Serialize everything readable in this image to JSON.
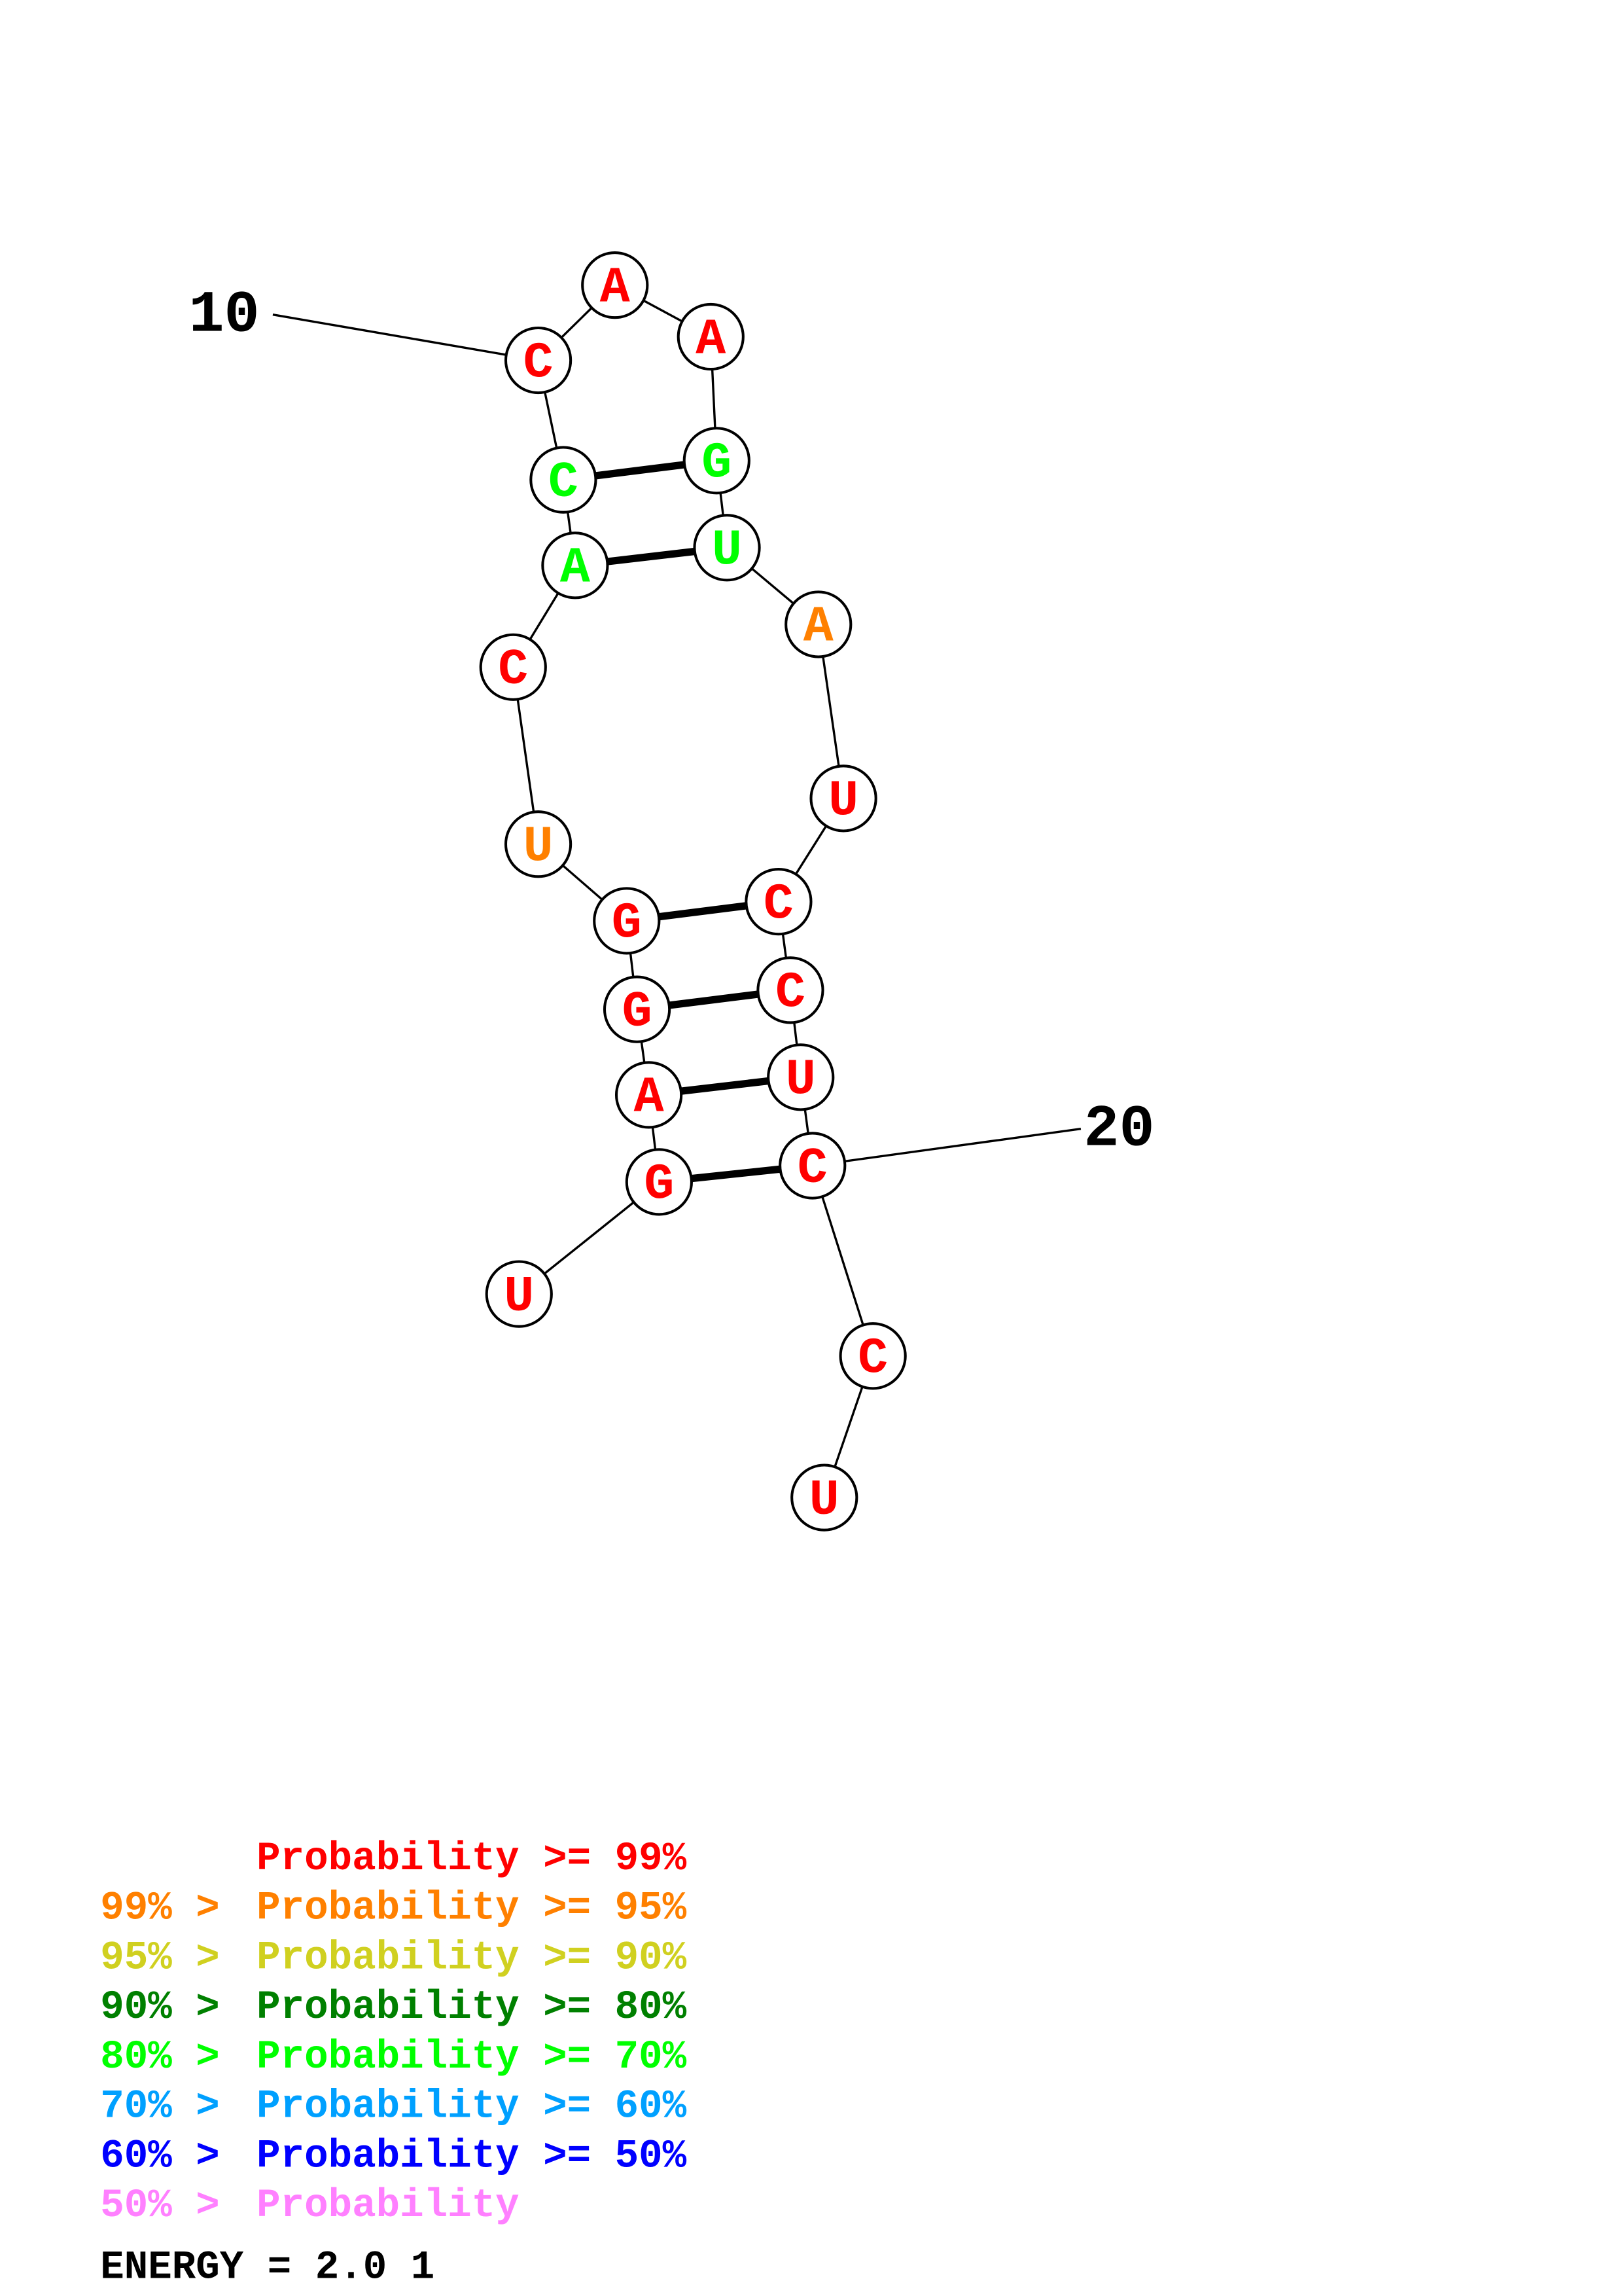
{
  "sequence": [
    {
      "base": "U",
      "color": "#ff0000"
    },
    {
      "base": "G",
      "color": "#ff0000"
    },
    {
      "base": "A",
      "color": "#ff0000"
    },
    {
      "base": "G",
      "color": "#ff0000"
    },
    {
      "base": "G",
      "color": "#ff0000"
    },
    {
      "base": "U",
      "color": "#ff8000"
    },
    {
      "base": "C",
      "color": "#ff0000"
    },
    {
      "base": "A",
      "color": "#00ff00"
    },
    {
      "base": "C",
      "color": "#00ff00"
    },
    {
      "base": "C",
      "color": "#ff0000"
    },
    {
      "base": "A",
      "color": "#ff0000"
    },
    {
      "base": "A",
      "color": "#ff0000"
    },
    {
      "base": "G",
      "color": "#00ff00"
    },
    {
      "base": "U",
      "color": "#00ff00"
    },
    {
      "base": "A",
      "color": "#ff8000"
    },
    {
      "base": "U",
      "color": "#ff0000"
    },
    {
      "base": "C",
      "color": "#ff0000"
    },
    {
      "base": "C",
      "color": "#ff0000"
    },
    {
      "base": "U",
      "color": "#ff0000"
    },
    {
      "base": "C",
      "color": "#ff0000"
    },
    {
      "base": "C",
      "color": "#ff0000"
    },
    {
      "base": "U",
      "color": "#ff0000"
    }
  ],
  "pairs": [
    [
      2,
      20
    ],
    [
      3,
      19
    ],
    [
      4,
      18
    ],
    [
      5,
      17
    ],
    [
      8,
      14
    ],
    [
      9,
      13
    ]
  ],
  "position_labels": [
    {
      "index": 10,
      "text": "10"
    },
    {
      "index": 20,
      "text": "20"
    }
  ],
  "legend": [
    {
      "prefix": "",
      "text": "Probability >= 99%",
      "color": "#ff0000"
    },
    {
      "prefix": "99% > ",
      "text": "Probability >= 95%",
      "color": "#ff8000"
    },
    {
      "prefix": "95% > ",
      "text": "Probability >= 90%",
      "color": "#d0d020"
    },
    {
      "prefix": "90% > ",
      "text": "Probability >= 80%",
      "color": "#008000"
    },
    {
      "prefix": "80% > ",
      "text": "Probability >= 70%",
      "color": "#00ff00"
    },
    {
      "prefix": "70% > ",
      "text": "Probability >= 60%",
      "color": "#00a0ff"
    },
    {
      "prefix": "60% > ",
      "text": "Probability >= 50%",
      "color": "#0000ff"
    },
    {
      "prefix": "50% > ",
      "text": "Probability",
      "color": "#ff80ff"
    }
  ],
  "energy_label": "ENERGY = 2.0  1"
}
